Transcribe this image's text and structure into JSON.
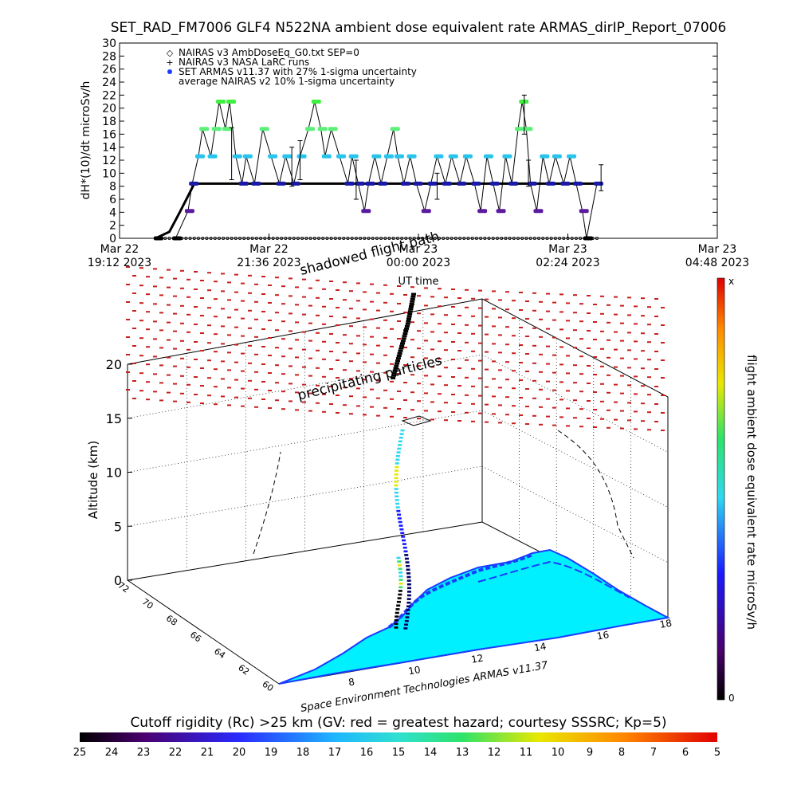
{
  "header": {
    "title": "SET_RAD_FM7006  GLF4 N522NA ambient dose equivalent rate ARMAS_dirIP_Report_07006"
  },
  "chart_data": [
    {
      "type": "line",
      "ylabel": "dH*(10)/dt microSv/h",
      "xlabel": "UT time",
      "ylim": [
        0,
        30
      ],
      "yticks": [
        "0",
        "2",
        "4",
        "6",
        "8",
        "10",
        "12",
        "14",
        "16",
        "18",
        "20",
        "22",
        "24",
        "26",
        "28",
        "30"
      ],
      "xticks": [
        {
          "date": "Mar 22",
          "time": "19:12 2023"
        },
        {
          "date": "Mar 22",
          "time": "21:36 2023"
        },
        {
          "date": "Mar 23",
          "time": "00:00 2023"
        },
        {
          "date": "Mar 23",
          "time": "02:24 2023"
        },
        {
          "date": "Mar 23",
          "time": "04:48 2023"
        }
      ],
      "legend": [
        {
          "symbol": "◇",
          "label": "NAIRAS v3 AmbDoseEq_G0.txt SEP=0"
        },
        {
          "symbol": "+",
          "label": "NAIRAS v3 NASA LaRC runs"
        },
        {
          "symbol": "●",
          "label": "SET ARMAS v11.37 with 27% 1-sigma uncertainty"
        },
        {
          "symbol": "",
          "label": "average NAIRAS v2 10% 1-sigma uncertainty"
        }
      ],
      "legend_position": "top-left",
      "series": [
        {
          "name": "SET ARMAS v11.37 with 27% 1-sigma uncertainty",
          "points": [
            [
              "19:48",
              0
            ],
            [
              "20:06",
              0
            ],
            [
              "20:18",
              4.2
            ],
            [
              "20:22",
              8.4
            ],
            [
              "20:28",
              12.6
            ],
            [
              "20:32",
              16.8
            ],
            [
              "20:40",
              12.6
            ],
            [
              "20:44",
              16.8
            ],
            [
              "20:48",
              21
            ],
            [
              "20:54",
              16.8
            ],
            [
              "20:58",
              21
            ],
            [
              "21:04",
              12.6
            ],
            [
              "21:10",
              8.4
            ],
            [
              "21:14",
              12.6
            ],
            [
              "21:22",
              8.4
            ],
            [
              "21:30",
              16.8
            ],
            [
              "21:38",
              12.6
            ],
            [
              "21:46",
              8.4
            ],
            [
              "21:52",
              12.6
            ],
            [
              "22:00",
              8.4
            ],
            [
              "22:06",
              12.6
            ],
            [
              "22:14",
              16.8
            ],
            [
              "22:20",
              21
            ],
            [
              "22:26",
              16.8
            ],
            [
              "22:30",
              12.6
            ],
            [
              "22:36",
              16.8
            ],
            [
              "22:44",
              12.6
            ],
            [
              "22:52",
              8.4
            ],
            [
              "22:56",
              12.6
            ],
            [
              "23:02",
              8.4
            ],
            [
              "23:08",
              4.2
            ],
            [
              "23:12",
              8.4
            ],
            [
              "23:18",
              12.6
            ],
            [
              "23:24",
              8.4
            ],
            [
              "23:30",
              12.6
            ],
            [
              "23:36",
              16.8
            ],
            [
              "23:40",
              12.6
            ],
            [
              "23:46",
              8.4
            ],
            [
              "23:52",
              12.6
            ],
            [
              "23:58",
              8.4
            ],
            [
              "00:06",
              4.2
            ],
            [
              "00:12",
              8.4
            ],
            [
              "00:18",
              12.6
            ],
            [
              "00:26",
              8.4
            ],
            [
              "00:32",
              12.6
            ],
            [
              "00:40",
              8.4
            ],
            [
              "00:46",
              12.6
            ],
            [
              "00:54",
              8.4
            ],
            [
              "01:00",
              4.2
            ],
            [
              "01:06",
              12.6
            ],
            [
              "01:12",
              8.4
            ],
            [
              "01:18",
              4.2
            ],
            [
              "01:24",
              12.6
            ],
            [
              "01:30",
              8.4
            ],
            [
              "01:36",
              16.8
            ],
            [
              "01:40",
              21
            ],
            [
              "01:44",
              16.8
            ],
            [
              "01:48",
              8.4
            ],
            [
              "01:54",
              4.2
            ],
            [
              "02:00",
              12.6
            ],
            [
              "02:06",
              8.4
            ],
            [
              "02:12",
              12.6
            ],
            [
              "02:20",
              8.4
            ],
            [
              "02:26",
              12.6
            ],
            [
              "02:32",
              8.4
            ],
            [
              "02:38",
              4.2
            ],
            [
              "02:42",
              0
            ],
            [
              "02:52",
              8.4
            ]
          ]
        },
        {
          "name": "NAIRAS v3 AmbDoseEq_G0.txt SEP=0",
          "points": [
            [
              "19:48",
              0.1
            ],
            [
              "20:00",
              1
            ],
            [
              "20:10",
              4
            ],
            [
              "20:18",
              6.5
            ],
            [
              "20:24",
              8.4
            ],
            [
              "02:52",
              8.4
            ]
          ]
        }
      ]
    },
    {
      "type": "scatter",
      "subtitle": "Space Environment Technologies ARMAS v11.37",
      "zlabel": "Altitude (km)",
      "zticks": [
        "0",
        "5",
        "10",
        "15",
        "20"
      ],
      "lat_ticks": [
        "72",
        "70",
        "68",
        "66",
        "64",
        "62",
        "60"
      ],
      "lon_ticks": [
        "8",
        "10",
        "12",
        "14",
        "16",
        "18"
      ],
      "annotations": [
        "shadowed flight path",
        "precipitating particles"
      ],
      "colorbar": {
        "label": "flight ambient dose equivalent rate microSv/h",
        "top": "x",
        "bottom": "0"
      }
    },
    {
      "type": "heatmap",
      "title": "Cutoff rigidity (Rc) >25 km (GV: red = greatest hazard; courtesy SSSRC; Kp=5)",
      "ticks": [
        "25",
        "24",
        "23",
        "22",
        "21",
        "20",
        "19",
        "18",
        "17",
        "16",
        "15",
        "14",
        "13",
        "12",
        "11",
        "10",
        "9",
        "8",
        "7",
        "6",
        "5"
      ]
    }
  ]
}
